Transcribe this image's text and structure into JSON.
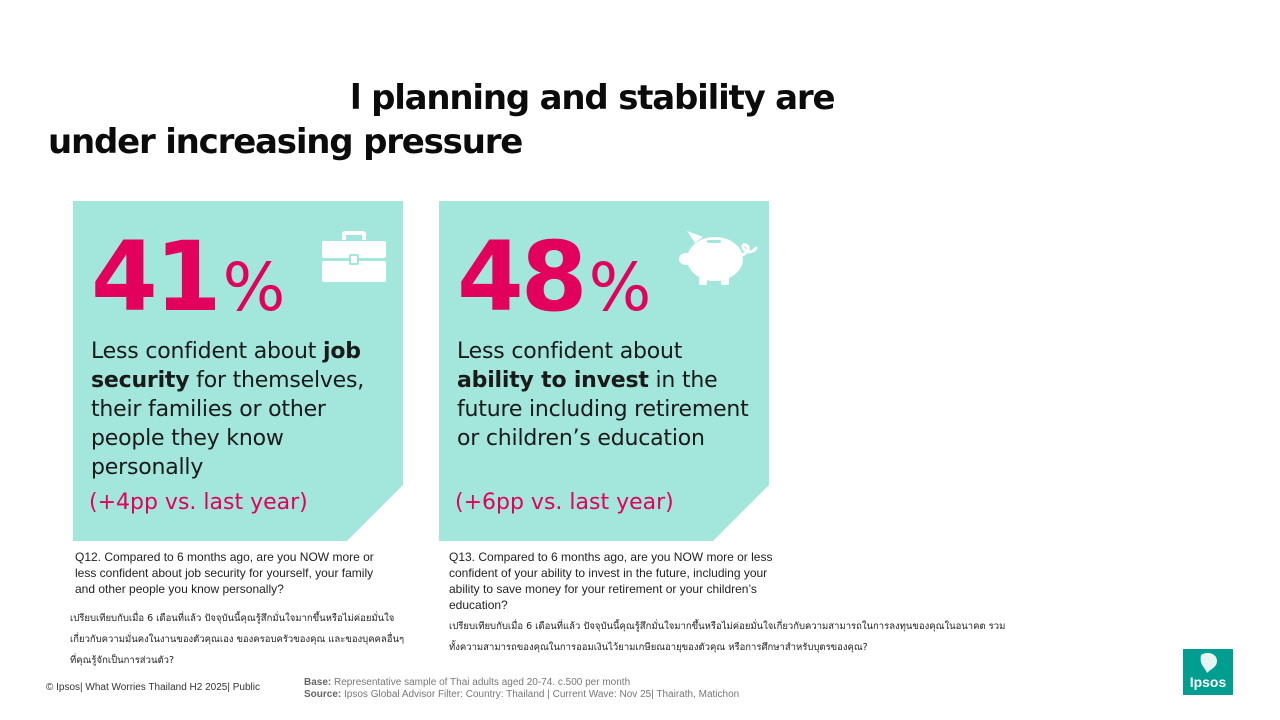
{
  "title": {
    "line1": "l planning and stability are",
    "line2": "under increasing pressure"
  },
  "colors": {
    "card_bg": "#a2e6dc",
    "accent": "#e3005d",
    "icon": "#ffffff",
    "logo": "#009d91"
  },
  "cards": [
    {
      "stat_number": "41",
      "stat_suffix": "%",
      "icon": "briefcase-icon",
      "desc_pre": "Less confident about ",
      "desc_bold": "job security",
      "desc_post": " for themselves, their families or other people they know personally",
      "change": "(+4pp vs. last year)",
      "question": "Q12. Compared to 6 months ago, are you NOW more or less confident about job security for yourself, your family and other people you know personally?",
      "question_thai": "เปรียบเทียบกับเมื่อ 6 เดือนที่แล้ว ปัจจุบันนี้คุณรู้สึกมั่นใจมากขึ้นหรือไม่ค่อยมั่นใจเกี่ยวกับความมั่นคงในงานของตัวคุณเอง ของครอบครัวของคุณ และของบุคคลอื่นๆ ที่คุณรู้จักเป็นการส่วนตัว?"
    },
    {
      "stat_number": "48",
      "stat_suffix": "%",
      "icon": "piggy-bank-icon",
      "desc_pre": "Less confident about ",
      "desc_bold": "ability to invest",
      "desc_post": " in the future including retirement or children’s education",
      "change": "(+6pp vs. last year)",
      "question": "Q13. Compared to 6 months ago, are you NOW more or less confident of your ability to invest in the future, including your ability to save money for your retirement or your children’s education?",
      "question_thai": "เปรียบเทียบกับเมื่อ 6 เดือนที่แล้ว ปัจจุบันนี้คุณรู้สึกมั่นใจมากขึ้นหรือไม่ค่อยมั่นใจเกี่ยวกับความสามารถในการลงทุนของคุณในอนาคต รวมทั้งความสามารถของคุณในการออมเงินไว้ยามเกษียณอายุของตัวคุณ หรือการศึกษาสำหรับบุตรของคุณ?"
    }
  ],
  "footer": {
    "copyright": "© Ipsos| What Worries Thailand H2 2025| Public",
    "base_label": "Base:",
    "base_text": " Representative sample of Thai adults aged 20-74. c.500 per month",
    "source_label": "Source:",
    "source_text": " Ipsos Global Advisor Filter: Country: Thailand | Current Wave: Nov 25| Thairath,  Matichon"
  },
  "logo": {
    "text": "Ipsos"
  }
}
